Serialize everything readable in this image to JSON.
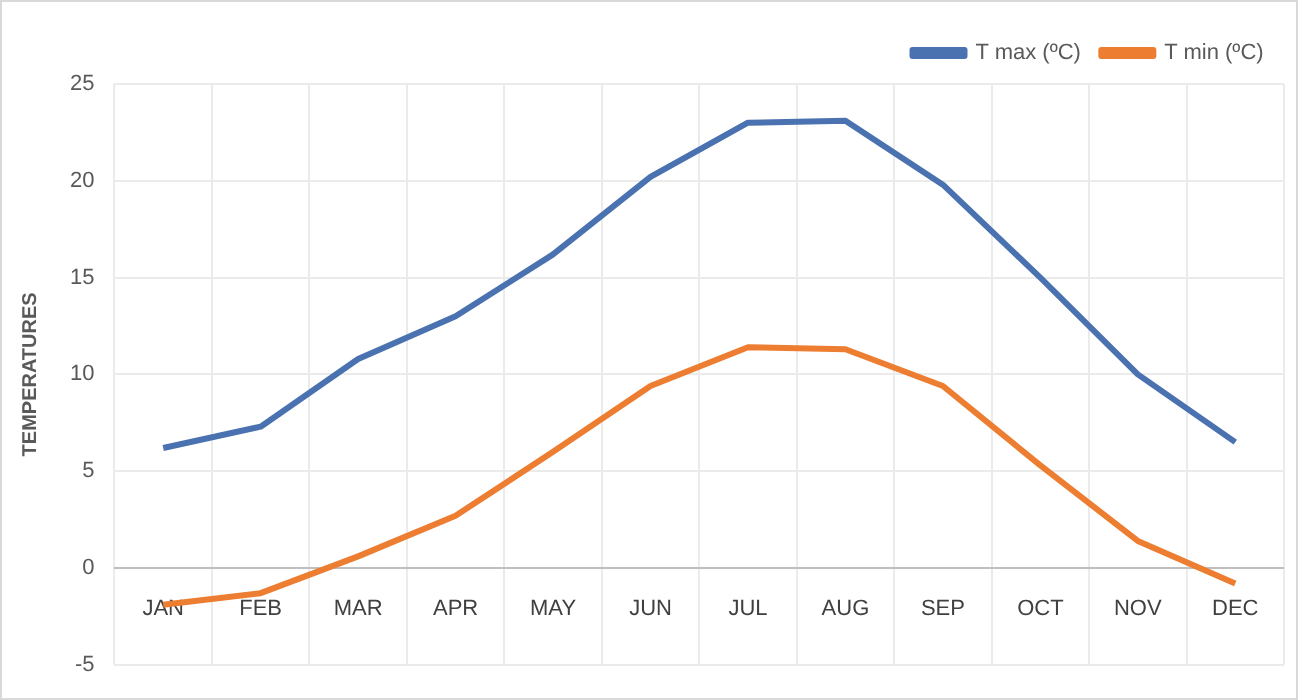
{
  "chart_data": {
    "type": "line",
    "ylabel": "TEMPERATURES",
    "categories": [
      "JAN",
      "FEB",
      "MAR",
      "APR",
      "MAY",
      "JUN",
      "JUL",
      "AUG",
      "SEP",
      "OCT",
      "NOV",
      "DEC"
    ],
    "series": [
      {
        "name": "T max (ºC)",
        "color": "#4a72b0",
        "values": [
          6.2,
          7.3,
          10.8,
          13.0,
          16.2,
          20.2,
          23.0,
          23.1,
          19.8,
          15.0,
          10.0,
          6.5
        ]
      },
      {
        "name": "T min (ºC)",
        "color": "#ed7d31",
        "values": [
          -1.9,
          -1.3,
          0.6,
          2.7,
          6.0,
          9.4,
          11.4,
          11.3,
          9.4,
          5.3,
          1.4,
          -0.8
        ]
      }
    ],
    "ylim": [
      -5,
      25
    ],
    "yticks": [
      -5,
      0,
      5,
      10,
      15,
      20,
      25
    ],
    "grid": true,
    "legend": "top right",
    "marker": "none",
    "line_style": "solid"
  }
}
